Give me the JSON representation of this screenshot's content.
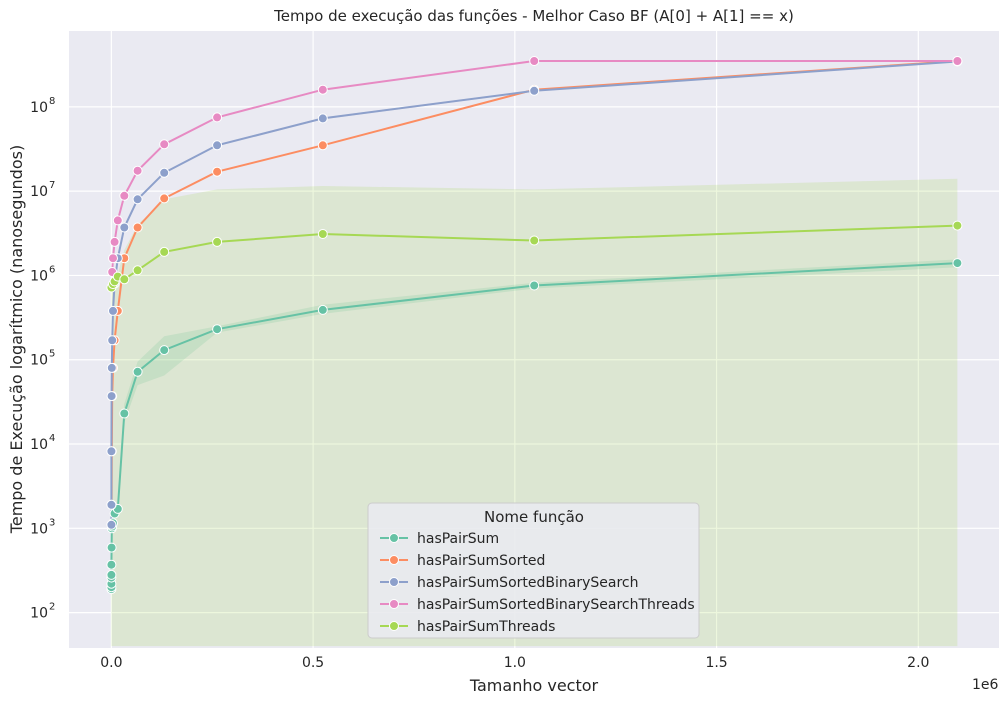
{
  "chart_data": {
    "type": "line",
    "title": "Tempo de execução das funções - Melhor Caso BF (A[0] + A[1] == x)",
    "xlabel": "Tamanho vector",
    "ylabel": "Tempo de Execução logarítmico (nanosegundos)",
    "x_offset_text": "1e6",
    "xlim": [
      -0.105,
      2.2
    ],
    "ylim_log10": [
      1.58,
      8.9
    ],
    "y_scale": "log",
    "grid": true,
    "x_ticks": [
      0.0,
      0.5,
      1.0,
      1.5,
      2.0
    ],
    "x_tick_labels": [
      "0.0",
      "0.5",
      "1.0",
      "1.5",
      "2.0"
    ],
    "y_ticks": [
      2,
      3,
      4,
      5,
      6,
      7,
      8
    ],
    "y_tick_labels": [
      "10",
      "10",
      "10",
      "10",
      "10",
      "10",
      "10"
    ],
    "y_tick_exponents": [
      "2",
      "3",
      "4",
      "5",
      "6",
      "7",
      "8"
    ],
    "legend": {
      "title": "Nome função",
      "position": "lower-center"
    },
    "series": [
      {
        "name": "hasPairSum",
        "color": "#66c2a5",
        "x": [
          2e-06,
          4e-06,
          8e-06,
          1.6e-05,
          3e-05,
          0.0001,
          0.0005,
          0.001,
          0.002,
          0.004,
          0.008,
          0.016,
          0.032,
          0.065,
          0.131,
          0.262,
          0.524,
          1.048,
          2.097
        ],
        "y": [
          190,
          200,
          220,
          260,
          280,
          370,
          590,
          1000,
          1050,
          1150,
          1500,
          1700,
          23000,
          72000,
          130000,
          230000,
          390000,
          760000,
          1400000
        ],
        "band_low": [
          180,
          190,
          210,
          250,
          270,
          350,
          560,
          950,
          1000,
          1100,
          1400,
          1600,
          18000,
          50000,
          65000,
          210000,
          350000,
          700000,
          1250000
        ],
        "band_high": [
          200,
          210,
          230,
          270,
          290,
          390,
          620,
          1050,
          1100,
          1200,
          1600,
          1800,
          30000,
          95000,
          190000,
          250000,
          450000,
          820000,
          1550000
        ]
      },
      {
        "name": "hasPairSumSorted",
        "color": "#fc8d62",
        "x": [
          0.0005,
          0.001,
          0.002,
          0.004,
          0.008,
          0.016,
          0.032,
          0.065,
          0.131,
          0.262,
          0.524,
          1.048,
          2.097
        ],
        "y": [
          1900,
          8200,
          37000,
          80000,
          170000,
          380000,
          1600000,
          3700000,
          8200000,
          17000000,
          35000000,
          160000000,
          350000000
        ],
        "band_low": [
          1900,
          8200,
          37000,
          80000,
          170000,
          380000,
          1600000,
          3700000,
          8200000,
          17000000,
          35000000,
          160000000,
          350000000
        ],
        "band_high": [
          1900,
          8200,
          37000,
          80000,
          170000,
          380000,
          1600000,
          3700000,
          8200000,
          17000000,
          35000000,
          160000000,
          350000000
        ]
      },
      {
        "name": "hasPairSumSortedBinarySearch",
        "color": "#8da0cb",
        "x": [
          2e-06,
          3e-05,
          0.0001,
          0.0005,
          0.001,
          0.002,
          0.004,
          0.008,
          0.016,
          0.032,
          0.065,
          0.131,
          0.262,
          0.524,
          1.048,
          2.097
        ],
        "y": [
          1100,
          1900,
          8200,
          37000,
          80000,
          170000,
          380000,
          800000,
          1600000,
          3700000,
          8000000,
          16500000,
          35000000,
          73000000,
          155000000,
          345000000
        ],
        "band_low": [
          1050,
          1850,
          8000,
          36000,
          78000,
          165000,
          370000,
          780000,
          1550000,
          3600000,
          7800000,
          16000000,
          34000000,
          71000000,
          152000000,
          340000000
        ],
        "band_high": [
          1150,
          1950,
          8400,
          38000,
          82000,
          175000,
          390000,
          820000,
          1650000,
          3800000,
          8200000,
          17000000,
          36000000,
          75000000,
          158000000,
          350000000
        ]
      },
      {
        "name": "hasPairSumSortedBinarySearchThreads",
        "color": "#e78ac3",
        "x": [
          0.002,
          0.004,
          0.008,
          0.016,
          0.032,
          0.065,
          0.131,
          0.262,
          0.524,
          1.048,
          2.097
        ],
        "y": [
          1100000,
          1600000,
          2500000,
          4500000,
          8800000,
          17500000,
          36000000,
          75000000,
          160000000,
          350000000,
          350000000
        ],
        "band_low": [
          1100000,
          1600000,
          2500000,
          4500000,
          8800000,
          17500000,
          36000000,
          75000000,
          160000000,
          350000000,
          350000000
        ],
        "band_high": [
          1100000,
          1600000,
          2500000,
          4500000,
          8800000,
          17500000,
          36000000,
          75000000,
          160000000,
          350000000,
          350000000
        ]
      },
      {
        "name": "hasPairSumThreads",
        "color": "#a6d854",
        "x": [
          2e-06,
          0.004,
          0.008,
          0.016,
          0.032,
          0.065,
          0.131,
          0.262,
          0.524,
          1.048,
          2.097
        ],
        "y": [
          720000,
          790000,
          850000,
          970000,
          900000,
          1150000,
          1900000,
          2500000,
          3100000,
          2600000,
          3900000
        ],
        "band_low": [
          40,
          40,
          40,
          40,
          40,
          40,
          40,
          40,
          40,
          40,
          40
        ],
        "band_high": [
          760000,
          830000,
          900000,
          1050000,
          2000000,
          4000000,
          8000000,
          10500000,
          11500000,
          10500000,
          14000000
        ]
      }
    ]
  }
}
